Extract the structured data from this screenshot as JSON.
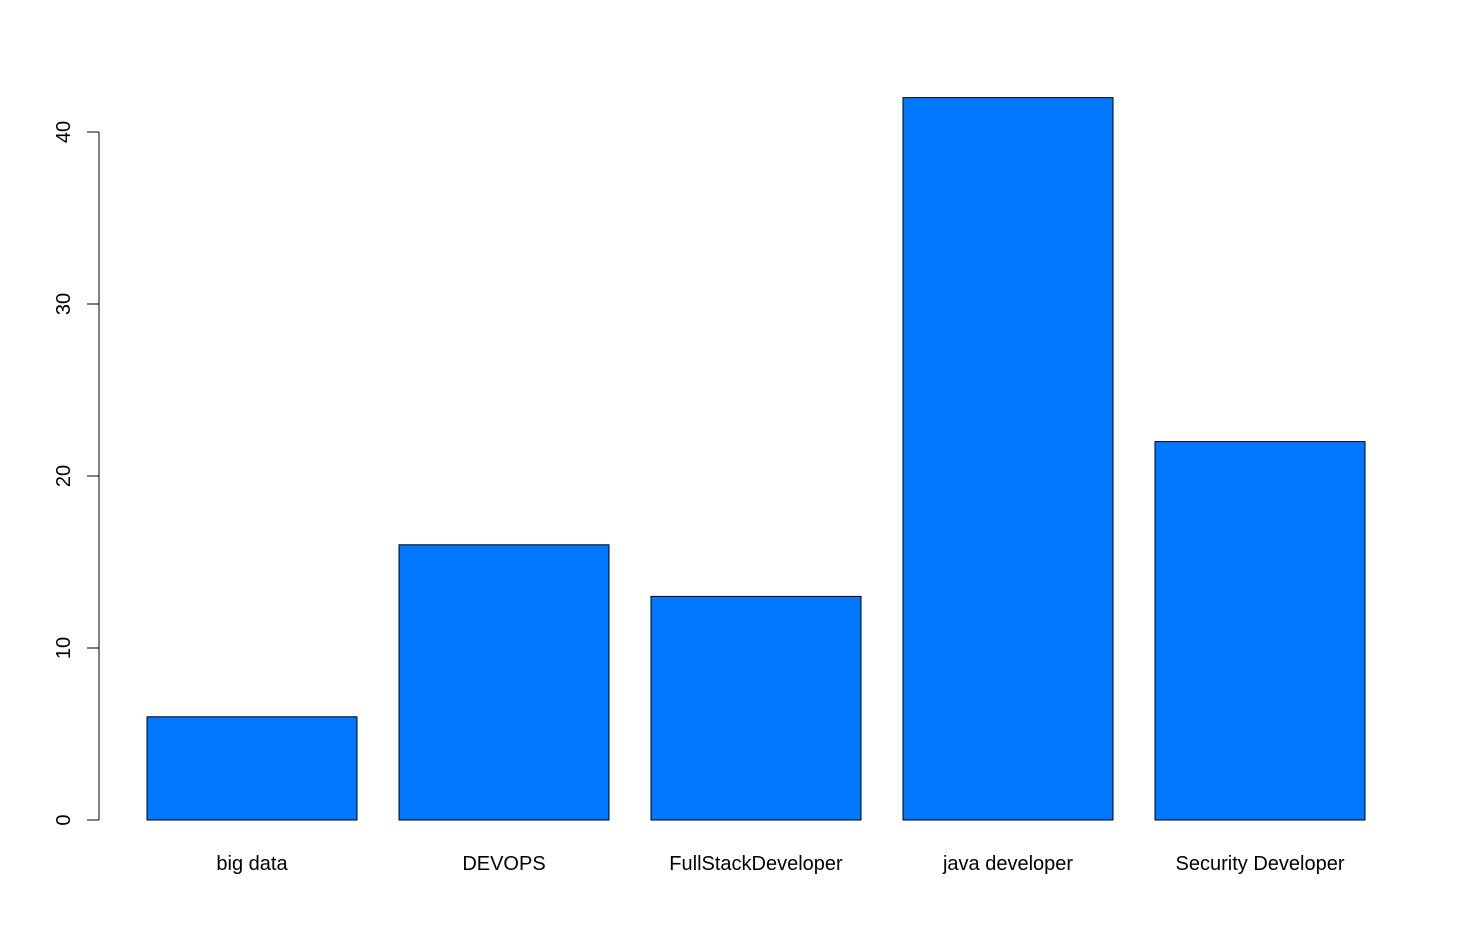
{
  "chart_data": {
    "type": "bar",
    "title": "",
    "xlabel": "",
    "ylabel": "",
    "categories": [
      "big data",
      "DEVOPS",
      "FullStackDeveloper",
      "java developer",
      "Security Developer"
    ],
    "values": [
      6,
      16,
      13,
      42,
      22
    ],
    "ylim": [
      0,
      44
    ],
    "yticks": [
      0,
      10,
      20,
      30,
      40
    ],
    "grid": false,
    "legend": "none",
    "bar_color": "#0077FF"
  }
}
